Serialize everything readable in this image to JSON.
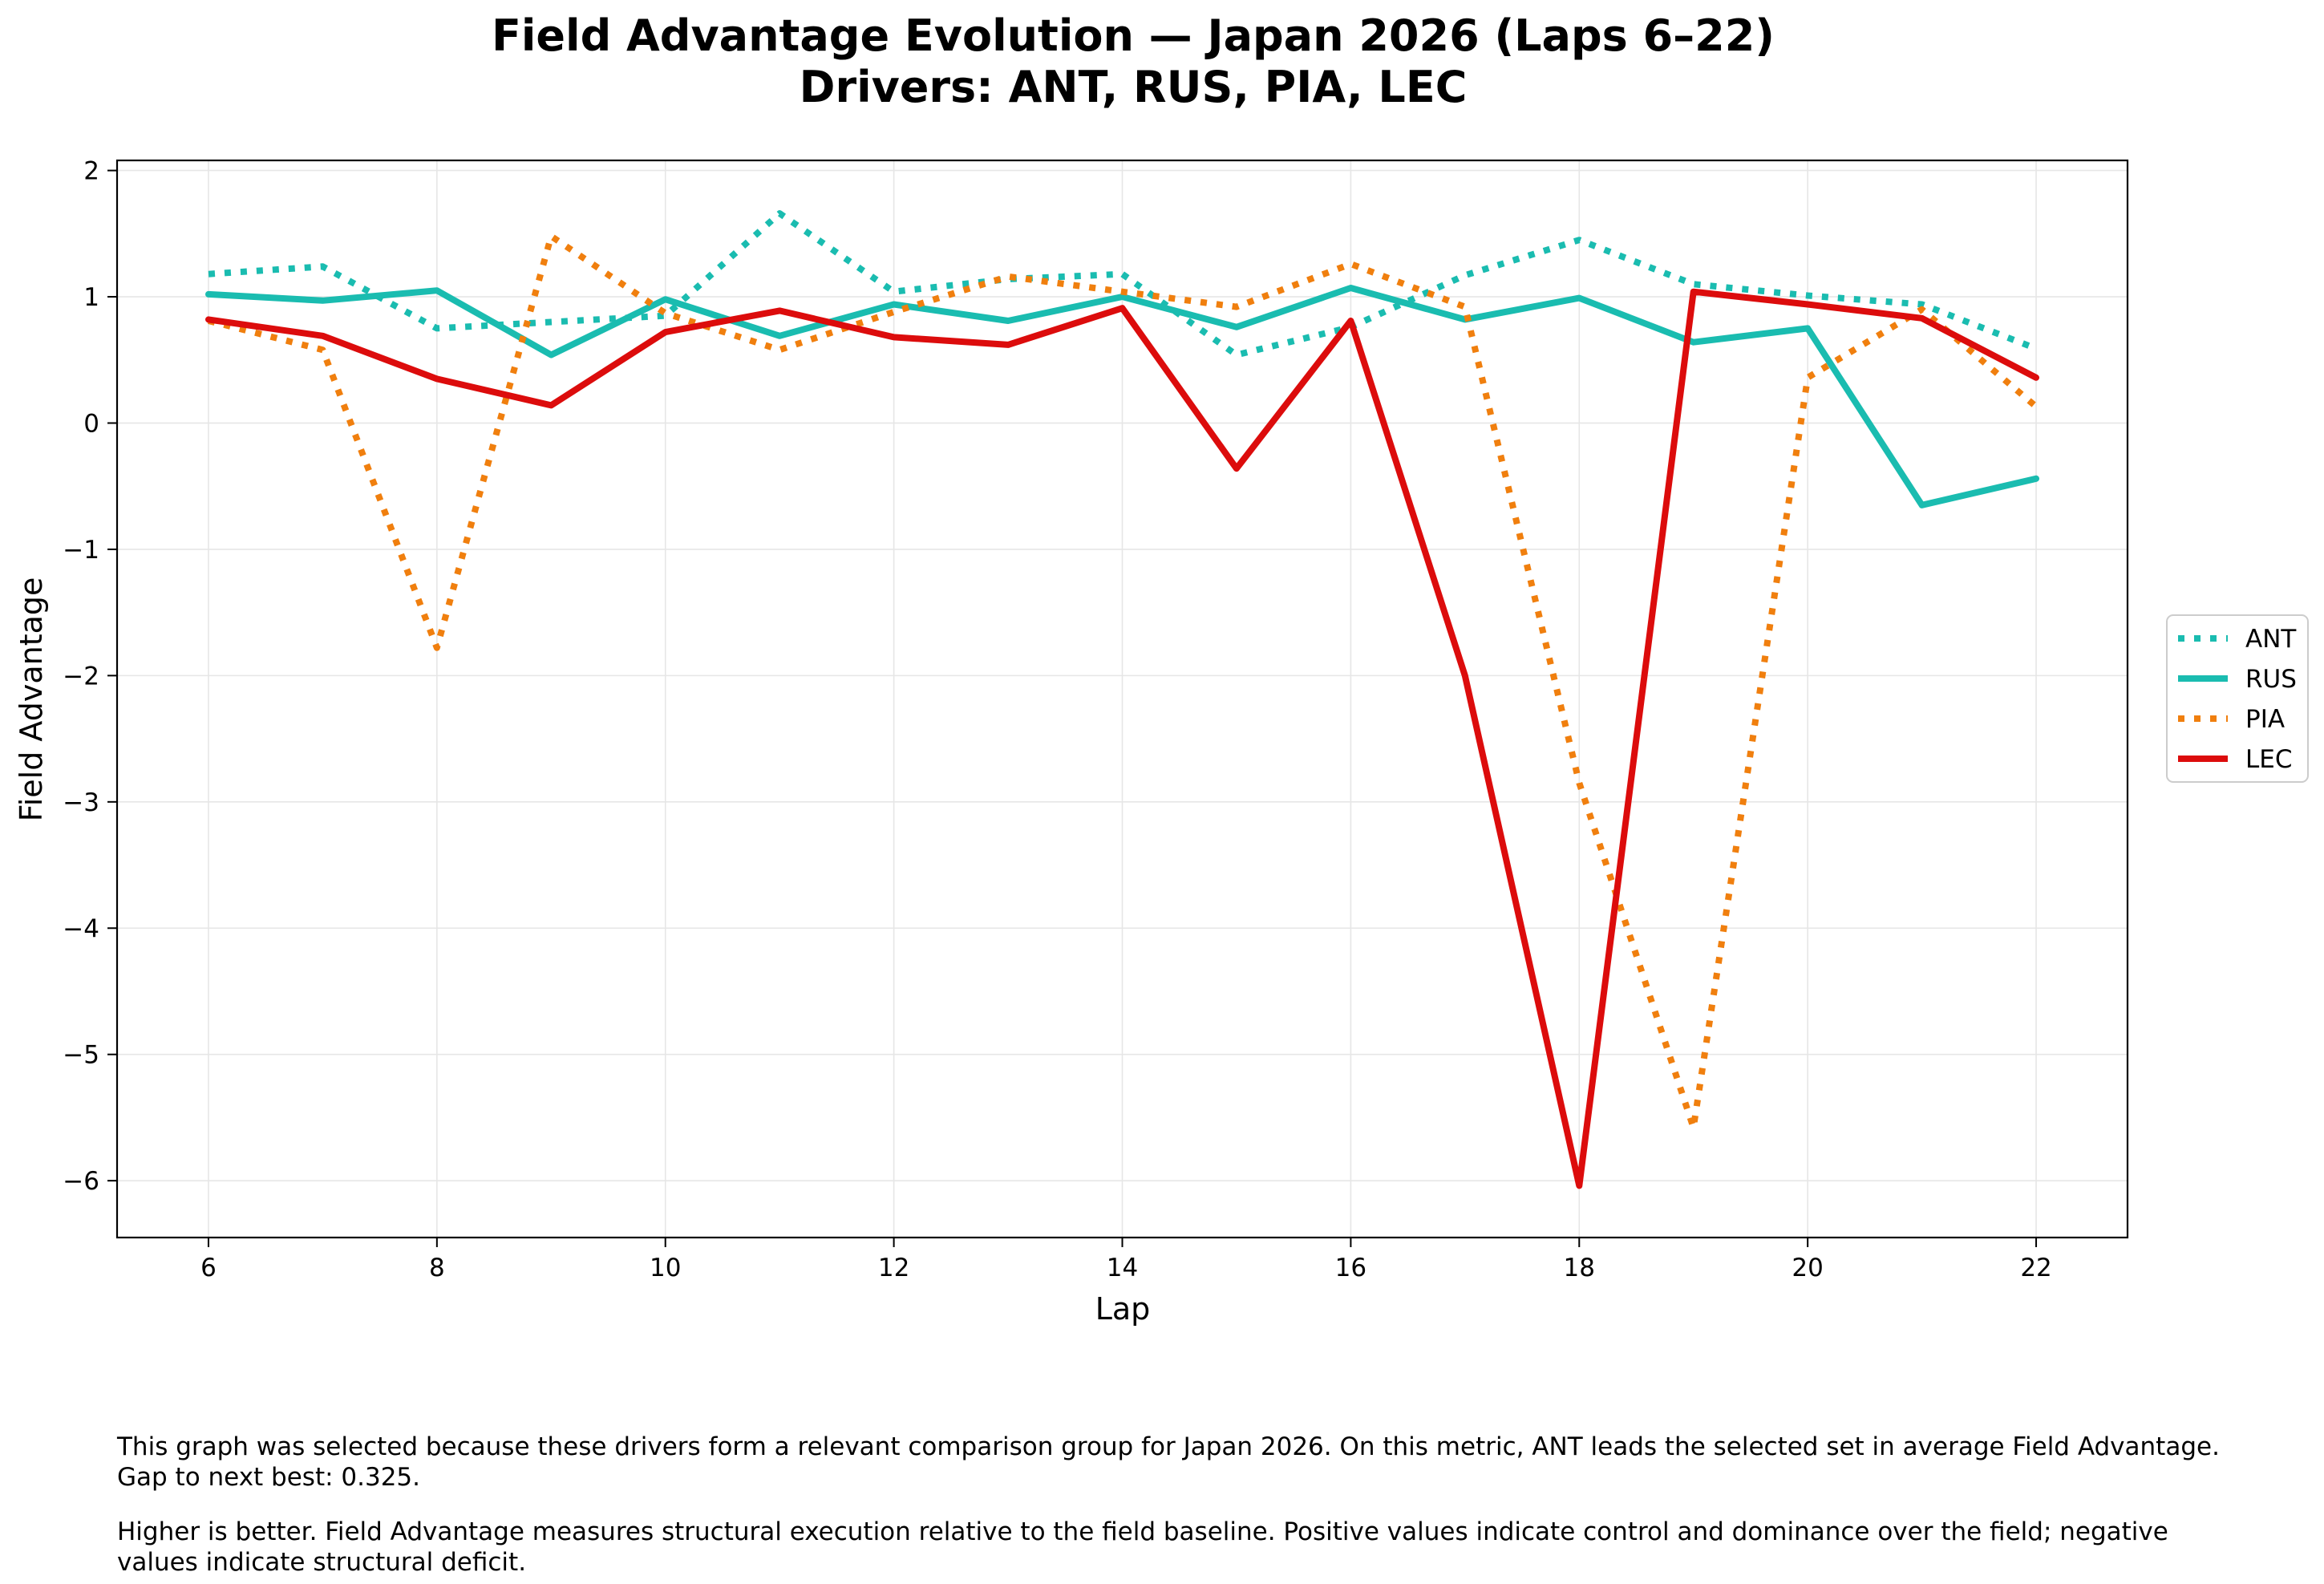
{
  "chart_data": {
    "type": "line",
    "title": "Field Advantage Evolution — Japan 2026 (Laps 6–22)",
    "subtitle": "Drivers: ANT, RUS, PIA, LEC",
    "xlabel": "Lap",
    "ylabel": "Field Advantage",
    "xlim": [
      5.2,
      22.8
    ],
    "ylim": [
      -6.45,
      2.08
    ],
    "xticks": [
      6,
      8,
      10,
      12,
      14,
      16,
      18,
      20,
      22
    ],
    "yticks": [
      2,
      1,
      0,
      -1,
      -2,
      -3,
      -4,
      -5,
      -6
    ],
    "ytick_labels": [
      "2",
      "1",
      "0",
      "−1",
      "−2",
      "−3",
      "−4",
      "−5",
      "−6"
    ],
    "grid": true,
    "legend_position": "right-outside",
    "x": [
      6,
      7,
      8,
      9,
      10,
      11,
      12,
      13,
      14,
      15,
      16,
      17,
      18,
      19,
      20,
      21,
      22
    ],
    "series": [
      {
        "name": "ANT",
        "color": "#1abcb0",
        "style": "dotted",
        "values": [
          1.18,
          1.24,
          0.75,
          0.8,
          0.85,
          1.66,
          1.04,
          1.14,
          1.18,
          0.54,
          0.76,
          1.17,
          1.45,
          1.1,
          1.01,
          0.94,
          0.59
        ]
      },
      {
        "name": "RUS",
        "color": "#1abcb0",
        "style": "solid",
        "values": [
          1.02,
          0.97,
          1.05,
          0.54,
          0.98,
          0.69,
          0.94,
          0.81,
          1.0,
          0.76,
          1.07,
          0.82,
          0.99,
          0.64,
          0.75,
          -0.65,
          -0.44
        ]
      },
      {
        "name": "PIA",
        "color": "#f07f0e",
        "style": "dotted",
        "values": [
          0.81,
          0.58,
          -1.78,
          1.48,
          0.87,
          0.58,
          0.88,
          1.16,
          1.04,
          0.92,
          1.26,
          0.92,
          -2.85,
          -5.58,
          0.36,
          0.9,
          0.13
        ]
      },
      {
        "name": "LEC",
        "color": "#dc0c0c",
        "style": "solid",
        "values": [
          0.82,
          0.69,
          0.35,
          0.14,
          0.72,
          0.89,
          0.68,
          0.62,
          0.91,
          -0.36,
          0.81,
          -2.0,
          -6.04,
          1.04,
          0.94,
          0.83,
          0.36
        ]
      }
    ]
  },
  "notes": [
    "This graph was selected because these drivers form a relevant comparison group for Japan 2026. On this metric, ANT leads the selected set in average Field Advantage. Gap to next best: 0.325.",
    "Higher is better. Field Advantage measures structural execution relative to the field baseline. Positive values indicate control and dominance over the field; negative values indicate structural deficit."
  ]
}
